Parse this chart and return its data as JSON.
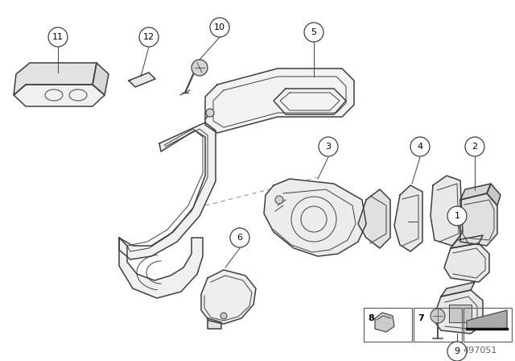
{
  "background_color": "#ffffff",
  "line_color": "#404040",
  "part_number_text": "497051",
  "lw_main": 1.1,
  "lw_thin": 0.7,
  "lw_label": 0.7
}
